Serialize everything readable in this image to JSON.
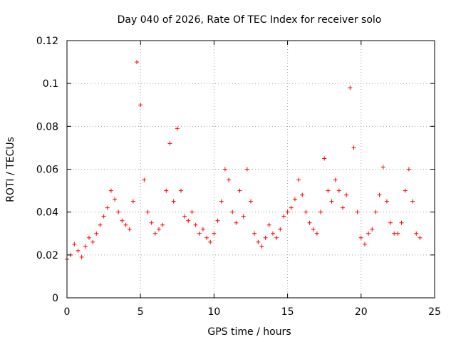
{
  "chart_data": {
    "type": "scatter",
    "title": "Day 040 of 2026, Rate Of TEC Index for receiver solo",
    "xlabel": "GPS time / hours",
    "ylabel": "ROTI / TECUs",
    "xlim": [
      0,
      25
    ],
    "ylim": [
      0,
      0.12
    ],
    "xticks": [
      0,
      5,
      10,
      15,
      20,
      25
    ],
    "xtick_labels": [
      "0",
      "5",
      "10",
      "15",
      "20",
      "25"
    ],
    "yticks": [
      0,
      0.02,
      0.04,
      0.06,
      0.08,
      0.1,
      0.12
    ],
    "ytick_labels": [
      "0",
      "0.02",
      "0.04",
      "0.06",
      "0.08",
      "0.1",
      "0.12"
    ],
    "grid": true,
    "marker": "+",
    "color": "#ff0000",
    "series": [
      {
        "name": "ROTI",
        "x": [
          0.0,
          0.25,
          0.5,
          0.75,
          1.0,
          1.25,
          1.5,
          1.75,
          2.0,
          2.25,
          2.5,
          2.75,
          3.0,
          3.25,
          3.5,
          3.75,
          4.0,
          4.25,
          4.5,
          4.75,
          5.0,
          5.25,
          5.5,
          5.75,
          6.0,
          6.25,
          6.5,
          6.75,
          7.0,
          7.25,
          7.5,
          7.75,
          8.0,
          8.25,
          8.5,
          8.75,
          9.0,
          9.25,
          9.5,
          9.75,
          10.0,
          10.25,
          10.5,
          10.75,
          11.0,
          11.25,
          11.5,
          11.75,
          12.0,
          12.25,
          12.5,
          12.75,
          13.0,
          13.25,
          13.5,
          13.75,
          14.0,
          14.25,
          14.5,
          14.75,
          15.0,
          15.25,
          15.5,
          15.75,
          16.0,
          16.25,
          16.5,
          16.75,
          17.0,
          17.25,
          17.5,
          17.75,
          18.0,
          18.25,
          18.5,
          18.75,
          19.0,
          19.25,
          19.5,
          19.75,
          20.0,
          20.25,
          20.5,
          20.75,
          21.0,
          21.25,
          21.5,
          21.75,
          22.0,
          22.25,
          22.5,
          22.75,
          23.0,
          23.25,
          23.5,
          23.75,
          24.0
        ],
        "y": [
          0.018,
          0.02,
          0.025,
          0.022,
          0.019,
          0.024,
          0.028,
          0.026,
          0.03,
          0.034,
          0.038,
          0.042,
          0.05,
          0.046,
          0.04,
          0.036,
          0.034,
          0.032,
          0.045,
          0.11,
          0.09,
          0.055,
          0.04,
          0.035,
          0.03,
          0.032,
          0.034,
          0.05,
          0.072,
          0.045,
          0.079,
          0.05,
          0.038,
          0.036,
          0.04,
          0.034,
          0.03,
          0.032,
          0.028,
          0.026,
          0.03,
          0.036,
          0.045,
          0.06,
          0.055,
          0.04,
          0.035,
          0.05,
          0.038,
          0.06,
          0.045,
          0.03,
          0.026,
          0.024,
          0.028,
          0.034,
          0.03,
          0.028,
          0.032,
          0.038,
          0.04,
          0.042,
          0.046,
          0.055,
          0.048,
          0.04,
          0.035,
          0.032,
          0.03,
          0.04,
          0.065,
          0.05,
          0.045,
          0.055,
          0.05,
          0.042,
          0.048,
          0.098,
          0.07,
          0.04,
          0.028,
          0.025,
          0.03,
          0.032,
          0.04,
          0.048,
          0.061,
          0.045,
          0.035,
          0.03,
          0.03,
          0.035,
          0.05,
          0.06,
          0.045,
          0.03,
          0.028
        ]
      }
    ]
  }
}
